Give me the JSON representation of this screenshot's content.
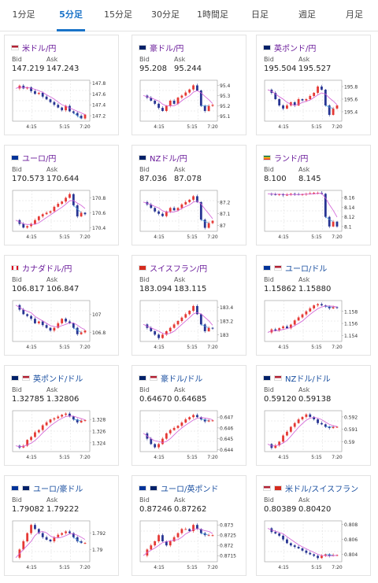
{
  "tabs": [
    {
      "label": "1分足",
      "active": false
    },
    {
      "label": "5分足",
      "active": true
    },
    {
      "label": "15分足",
      "active": false
    },
    {
      "label": "30分足",
      "active": false
    },
    {
      "label": "1時間足",
      "active": false
    },
    {
      "label": "日足",
      "active": false
    },
    {
      "label": "週足",
      "active": false
    },
    {
      "label": "月足",
      "active": false
    }
  ],
  "labels": {
    "bid": "Bid",
    "ask": "Ask"
  },
  "colors": {
    "up": "#e53935",
    "down": "#283593",
    "ma": "#d15cd6",
    "last": "#4aa3df",
    "title": "#6a1b9a",
    "title_blue": "#1a4fa0",
    "tab_active": "#1a73c8"
  },
  "cards": [
    {
      "title": "米ドル/円",
      "flag": "us",
      "bid": "147.219",
      "ask": "147.243",
      "ticks": [
        "147.8",
        "147.6",
        "147.4",
        "147.2"
      ],
      "times": [
        "4:15",
        "5:15",
        "7:20"
      ],
      "trend": [
        147.7,
        147.75,
        147.7,
        147.72,
        147.65,
        147.6,
        147.62,
        147.55,
        147.5,
        147.45,
        147.4,
        147.35,
        147.3,
        147.38,
        147.28,
        147.25,
        147.2,
        147.15,
        147.22
      ],
      "ylim": [
        147.1,
        147.85
      ]
    },
    {
      "title": "豪ドル/円",
      "flag": "au",
      "bid": "95.208",
      "ask": "95.244",
      "ticks": [
        "95.4",
        "95.3",
        "95.2",
        "95.1"
      ],
      "times": [
        "4:15",
        "5:15",
        "7:20"
      ],
      "trend": [
        95.3,
        95.28,
        95.25,
        95.22,
        95.18,
        95.15,
        95.2,
        95.25,
        95.22,
        95.28,
        95.3,
        95.33,
        95.36,
        95.4,
        95.35,
        95.2,
        95.15,
        95.2,
        95.21
      ],
      "ylim": [
        95.05,
        95.45
      ]
    },
    {
      "title": "英ポンド/円",
      "flag": "gb",
      "bid": "195.504",
      "ask": "195.527",
      "ticks": [
        "195.8",
        "195.6",
        "195.4"
      ],
      "times": [
        "4:15",
        "5:15",
        "7:20"
      ],
      "trend": [
        195.75,
        195.7,
        195.6,
        195.5,
        195.45,
        195.5,
        195.55,
        195.5,
        195.6,
        195.58,
        195.6,
        195.65,
        195.7,
        195.8,
        195.75,
        195.5,
        195.35,
        195.45,
        195.5
      ],
      "ylim": [
        195.25,
        195.9
      ]
    },
    {
      "title": "ユーロ/円",
      "flag": "eu",
      "bid": "170.573",
      "ask": "170.644",
      "ticks": [
        "170.8",
        "170.6",
        "170.4"
      ],
      "times": [
        "4:15",
        "5:15",
        "7:20"
      ],
      "trend": [
        170.5,
        170.45,
        170.4,
        170.42,
        170.45,
        170.5,
        170.55,
        170.58,
        170.6,
        170.62,
        170.68,
        170.72,
        170.75,
        170.8,
        170.85,
        170.7,
        170.55,
        170.6,
        170.58
      ],
      "ylim": [
        170.35,
        170.9
      ]
    },
    {
      "title": "NZドル/円",
      "flag": "nz",
      "bid": "87.036",
      "ask": "87.078",
      "ticks": [
        "87.2",
        "87.1",
        "87"
      ],
      "times": [
        "4:15",
        "5:15",
        "7:20"
      ],
      "trend": [
        87.2,
        87.18,
        87.15,
        87.12,
        87.1,
        87.08,
        87.12,
        87.15,
        87.13,
        87.15,
        87.18,
        87.2,
        87.22,
        87.25,
        87.2,
        87.05,
        86.98,
        87.02,
        87.04
      ],
      "ylim": [
        86.95,
        87.3
      ]
    },
    {
      "title": "ランド/円",
      "flag": "za",
      "bid": "8.100",
      "ask": "8.145",
      "ticks": [
        "8.16",
        "8.14",
        "8.12",
        "8.1"
      ],
      "times": [
        "4:15",
        "5:15",
        "7:20"
      ],
      "trend": [
        8.168,
        8.167,
        8.166,
        8.167,
        8.165,
        8.166,
        8.168,
        8.167,
        8.166,
        8.167,
        8.168,
        8.169,
        8.17,
        8.17,
        8.168,
        8.12,
        8.1,
        8.11,
        8.1
      ],
      "ylim": [
        8.09,
        8.175
      ]
    },
    {
      "title": "カナダドル/円",
      "flag": "ca",
      "bid": "106.817",
      "ask": "106.847",
      "ticks": [
        "107",
        "106.8"
      ],
      "times": [
        "4:15",
        "5:15",
        "7:20"
      ],
      "trend": [
        107.1,
        107.05,
        107.0,
        106.98,
        106.95,
        106.9,
        106.92,
        106.88,
        106.85,
        106.82,
        106.85,
        106.9,
        106.95,
        106.92,
        106.9,
        106.85,
        106.78,
        106.8,
        106.82
      ],
      "ylim": [
        106.7,
        107.15
      ]
    },
    {
      "title": "スイスフラン/円",
      "flag": "ch",
      "bid": "183.094",
      "ask": "183.115",
      "ticks": [
        "183.4",
        "183.2",
        "183"
      ],
      "times": [
        "4:15",
        "5:15",
        "7:20"
      ],
      "trend": [
        183.15,
        183.1,
        183.05,
        183.0,
        182.95,
        183.0,
        183.05,
        183.1,
        183.15,
        183.2,
        183.25,
        183.3,
        183.35,
        183.42,
        183.3,
        183.15,
        183.05,
        183.1,
        183.09
      ],
      "ylim": [
        182.9,
        183.5
      ]
    },
    {
      "title": "ユーロ/ドル",
      "flag": "eu-us",
      "bid": "1.15862",
      "ask": "1.15880",
      "ticks": [
        "1.158",
        "1.156",
        "1.154"
      ],
      "times": [
        "4:15",
        "5:15",
        "7:20"
      ],
      "trend": [
        1.1545,
        1.155,
        1.1548,
        1.1552,
        1.1555,
        1.1552,
        1.1558,
        1.1565,
        1.157,
        1.1575,
        1.158,
        1.1585,
        1.159,
        1.1592,
        1.159,
        1.1588,
        1.1585,
        1.1587,
        1.1586
      ],
      "ylim": [
        1.153,
        1.1598
      ]
    },
    {
      "title": "英ポンド/ドル",
      "flag": "gb-us",
      "bid": "1.32785",
      "ask": "1.32806",
      "ticks": [
        "1.328",
        "1.326",
        "1.324"
      ],
      "times": [
        "4:15",
        "5:15",
        "7:20"
      ],
      "trend": [
        1.3235,
        1.3232,
        1.3235,
        1.3245,
        1.325,
        1.3258,
        1.3262,
        1.327,
        1.3275,
        1.328,
        1.3282,
        1.3285,
        1.3288,
        1.329,
        1.3285,
        1.328,
        1.3275,
        1.3278,
        1.3279
      ],
      "ylim": [
        1.3225,
        1.3295
      ]
    },
    {
      "title": "豪ドル/ドル",
      "flag": "au-us",
      "bid": "0.64670",
      "ask": "0.64685",
      "ticks": [
        "0.647",
        "0.646",
        "0.645",
        "0.644"
      ],
      "times": [
        "4:15",
        "5:15",
        "7:20"
      ],
      "trend": [
        0.6455,
        0.645,
        0.6445,
        0.6442,
        0.6445,
        0.645,
        0.6455,
        0.6458,
        0.646,
        0.6462,
        0.6465,
        0.6468,
        0.647,
        0.6472,
        0.647,
        0.6468,
        0.6466,
        0.6467,
        0.6467
      ],
      "ylim": [
        0.6438,
        0.6476
      ]
    },
    {
      "title": "NZドル/ドル",
      "flag": "nz-us",
      "bid": "0.59120",
      "ask": "0.59138",
      "ticks": [
        "0.592",
        "0.591",
        "0.59"
      ],
      "times": [
        "4:15",
        "5:15",
        "7:20"
      ],
      "trend": [
        0.5898,
        0.5895,
        0.5897,
        0.59,
        0.5905,
        0.5908,
        0.5912,
        0.5915,
        0.5918,
        0.592,
        0.5922,
        0.592,
        0.5918,
        0.5915,
        0.5914,
        0.5912,
        0.5911,
        0.5912,
        0.5912
      ],
      "ylim": [
        0.5892,
        0.5925
      ]
    },
    {
      "title": "ユーロ/豪ドル",
      "flag": "eu-au",
      "bid": "1.79082",
      "ask": "1.79222",
      "ticks": [
        "1.792",
        "1.79"
      ],
      "times": [
        "4:15",
        "5:15",
        "7:20"
      ],
      "trend": [
        1.789,
        1.79,
        1.791,
        1.792,
        1.793,
        1.7925,
        1.792,
        1.7915,
        1.7912,
        1.791,
        1.7915,
        1.7918,
        1.792,
        1.7922,
        1.792,
        1.7915,
        1.791,
        1.7908,
        1.7908
      ],
      "ylim": [
        1.7885,
        1.7935
      ]
    },
    {
      "title": "ユーロ/英ポンド",
      "flag": "eu-gb",
      "bid": "0.87246",
      "ask": "0.87262",
      "ticks": [
        "0.873",
        "0.8725",
        "0.872",
        "0.8715"
      ],
      "times": [
        "4:15",
        "5:15",
        "7:20"
      ],
      "trend": [
        0.8715,
        0.8718,
        0.872,
        0.8722,
        0.8725,
        0.8722,
        0.872,
        0.8722,
        0.8724,
        0.8726,
        0.8728,
        0.8728,
        0.8727,
        0.873,
        0.8728,
        0.8726,
        0.8725,
        0.8725,
        0.8725
      ],
      "ylim": [
        0.8712,
        0.8732
      ]
    },
    {
      "title": "米ドル/スイスフラン",
      "flag": "us-ch",
      "bid": "0.80389",
      "ask": "0.80420",
      "ticks": [
        "0.808",
        "0.806",
        "0.804"
      ],
      "times": [
        "4:15",
        "5:15",
        "7:20"
      ],
      "trend": [
        0.8075,
        0.807,
        0.8068,
        0.8065,
        0.806,
        0.8055,
        0.8052,
        0.805,
        0.8048,
        0.8045,
        0.8042,
        0.804,
        0.8038,
        0.8035,
        0.8038,
        0.804,
        0.8038,
        0.8039,
        0.8039
      ],
      "ylim": [
        0.803,
        0.8085
      ]
    }
  ]
}
